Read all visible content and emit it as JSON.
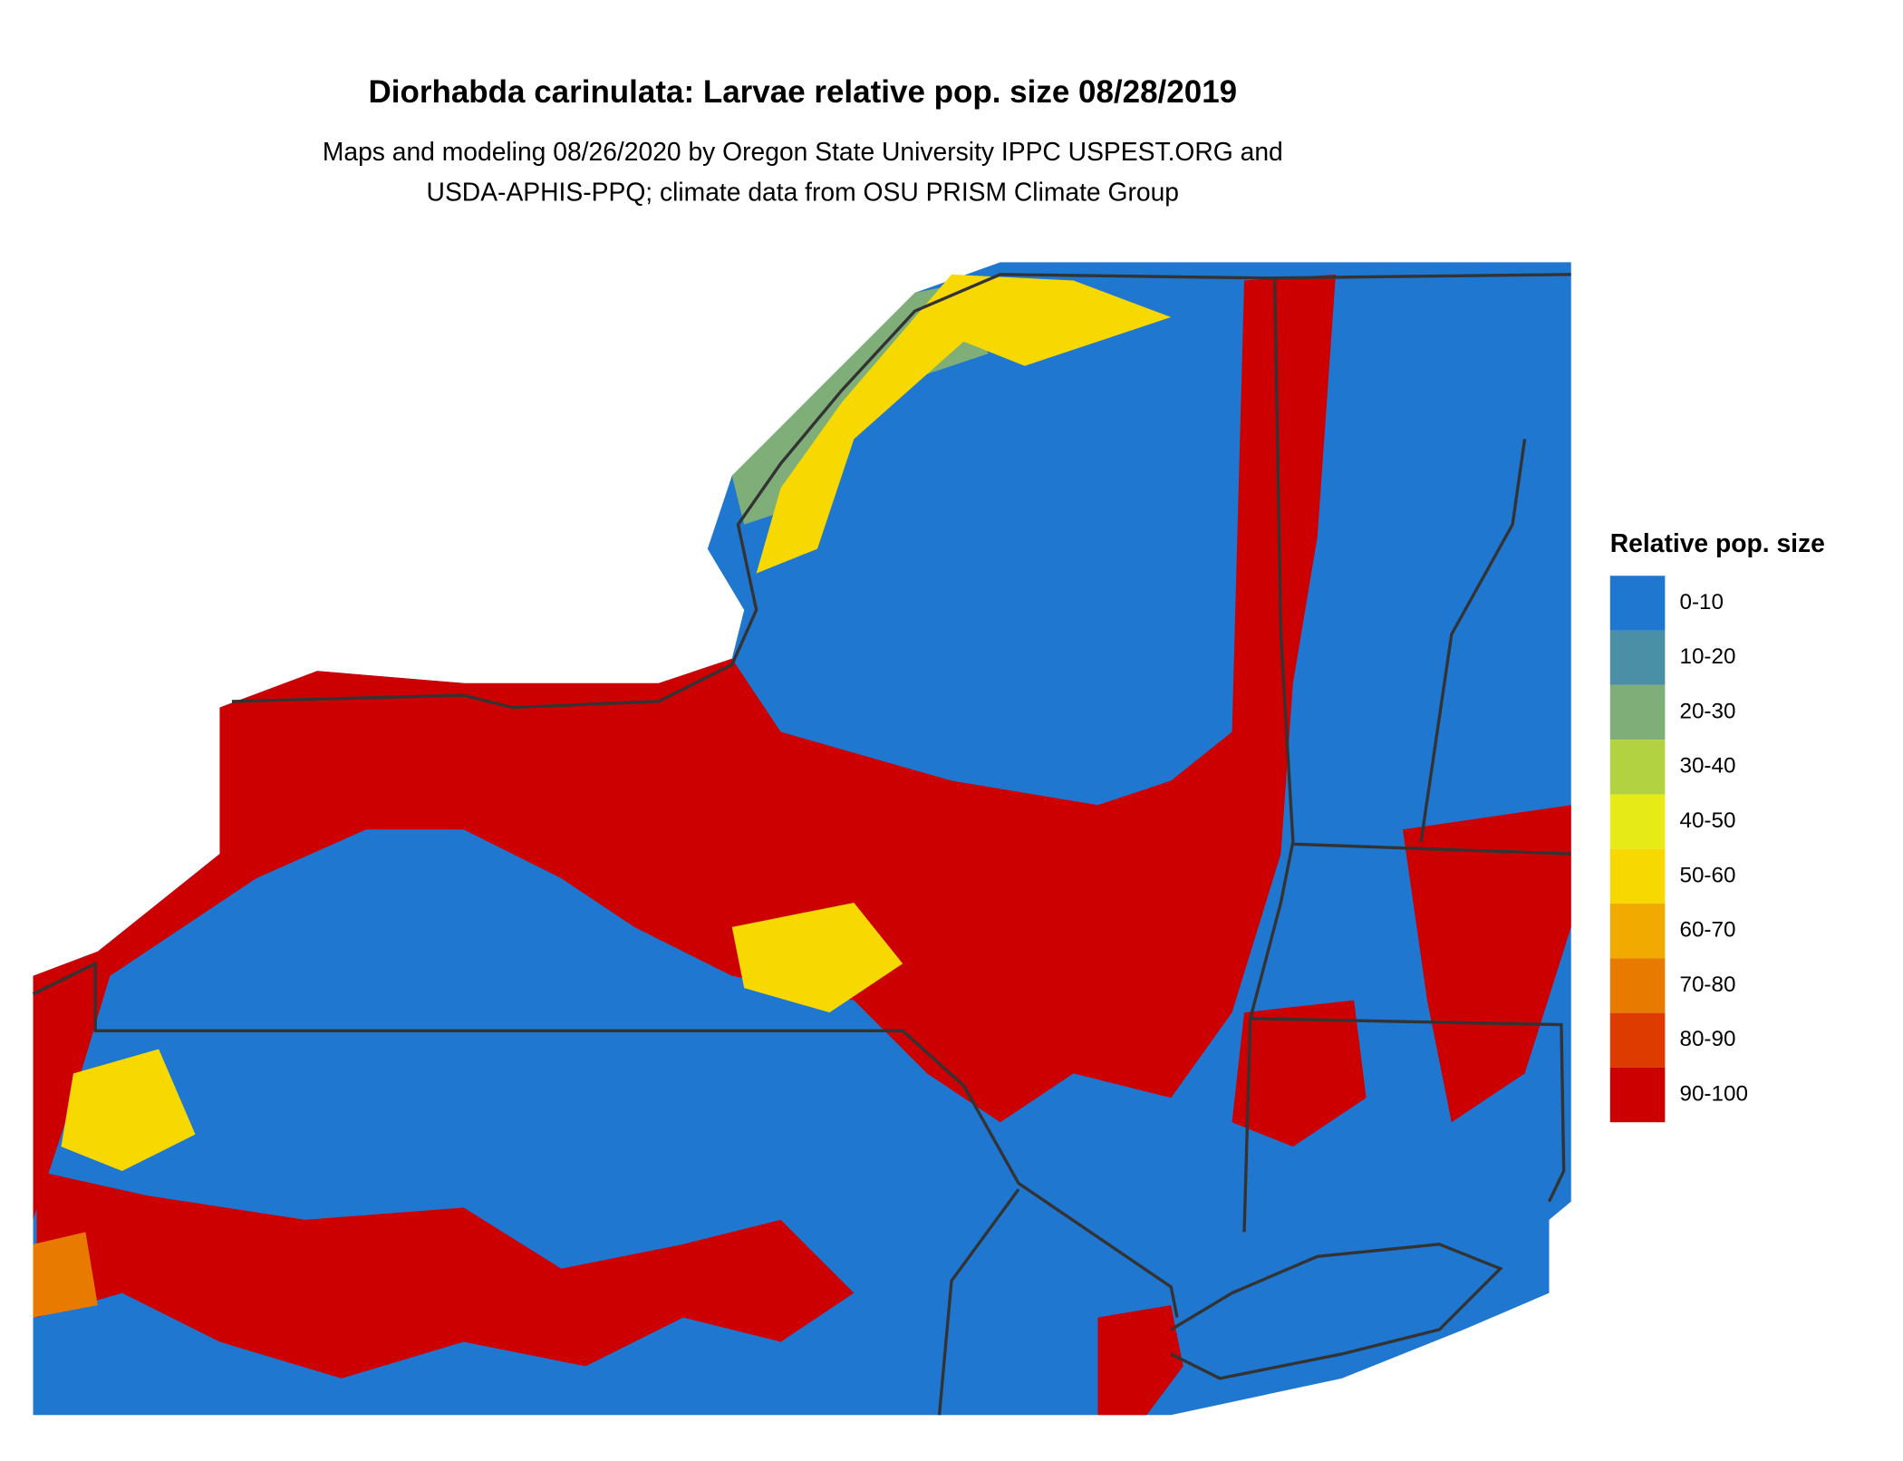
{
  "title": "Diorhabda carinulata: Larvae relative pop. size 08/28/2019",
  "subtitle": [
    "Maps and modeling 08/26/2020 by Oregon State University IPPC USPEST.ORG and",
    "USDA-APHIS-PPQ; climate data from OSU PRISM Climate Group"
  ],
  "legend": {
    "title": "Relative pop. size",
    "items": [
      {
        "label": "0-10",
        "color": "#1f77d0"
      },
      {
        "label": "10-20",
        "color": "#4a8fa6"
      },
      {
        "label": "20-30",
        "color": "#7fae78"
      },
      {
        "label": "30-40",
        "color": "#b3d241"
      },
      {
        "label": "40-50",
        "color": "#e6ea16"
      },
      {
        "label": "50-60",
        "color": "#f7d800"
      },
      {
        "label": "60-70",
        "color": "#f0aa00"
      },
      {
        "label": "70-80",
        "color": "#e87a00"
      },
      {
        "label": "80-90",
        "color": "#dd3b00"
      },
      {
        "label": "90-100",
        "color": "#cc0000"
      }
    ]
  }
}
